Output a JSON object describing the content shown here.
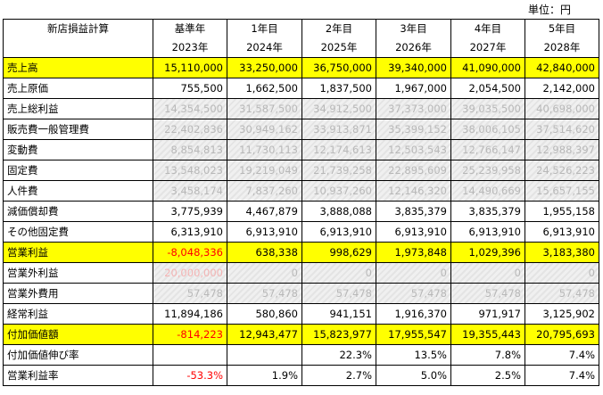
{
  "unit_label": "単位：円",
  "header": {
    "corner": "新店損益計算",
    "periods": [
      "基準年",
      "1年目",
      "2年目",
      "3年目",
      "4年目",
      "5年目"
    ],
    "years": [
      "2023年",
      "2024年",
      "2025年",
      "2026年",
      "2027年",
      "2028年"
    ]
  },
  "rows": [
    {
      "label": "売上高",
      "values": [
        "15,110,000",
        "33,250,000",
        "36,750,000",
        "39,340,000",
        "41,090,000",
        "42,840,000"
      ]
    },
    {
      "label": "売上原価",
      "values": [
        "755,500",
        "1,662,500",
        "1,837,500",
        "1,967,000",
        "2,054,500",
        "2,142,000"
      ]
    },
    {
      "label": "売上総利益",
      "values": [
        "14,354,500",
        "31,587,500",
        "34,912,500",
        "37,373,000",
        "39,035,500",
        "40,698,000"
      ]
    },
    {
      "label": "販売費一般管理費",
      "values": [
        "22,402,836",
        "30,949,162",
        "33,913,871",
        "35,399,152",
        "38,006,105",
        "37,514,620"
      ]
    },
    {
      "label": "変動費",
      "values": [
        "8,854,813",
        "11,730,113",
        "12,174,613",
        "12,503,543",
        "12,766,147",
        "12,988,397"
      ]
    },
    {
      "label": "固定費",
      "values": [
        "13,548,023",
        "19,219,049",
        "21,739,258",
        "22,895,609",
        "25,239,958",
        "24,526,223"
      ]
    },
    {
      "label": "人件費",
      "values": [
        "3,458,174",
        "7,837,260",
        "10,937,260",
        "12,146,320",
        "14,490,669",
        "15,657,155"
      ]
    },
    {
      "label": "減価償却費",
      "values": [
        "3,775,939",
        "4,467,879",
        "3,888,088",
        "3,835,379",
        "3,835,379",
        "1,955,158"
      ]
    },
    {
      "label": "その他固定費",
      "values": [
        "6,313,910",
        "6,913,910",
        "6,913,910",
        "6,913,910",
        "6,913,910",
        "6,913,910"
      ]
    },
    {
      "label": "営業利益",
      "values": [
        "-8,048,336",
        "638,338",
        "998,629",
        "1,973,848",
        "1,029,396",
        "3,183,380"
      ]
    },
    {
      "label": "営業外利益",
      "values": [
        "20,000,000",
        "0",
        "0",
        "0",
        "0",
        "0"
      ]
    },
    {
      "label": "営業外費用",
      "values": [
        "57,478",
        "57,478",
        "57,478",
        "57,478",
        "57,478",
        "57,478"
      ]
    },
    {
      "label": "経常利益",
      "values": [
        "11,894,186",
        "580,860",
        "941,151",
        "1,916,370",
        "971,917",
        "3,125,902"
      ]
    },
    {
      "label": "付加価値額",
      "values": [
        "-814,223",
        "12,943,477",
        "15,823,977",
        "17,955,547",
        "19,355,443",
        "20,795,693"
      ]
    },
    {
      "label": "付加価値伸び率",
      "values": [
        "",
        "",
        "22.3%",
        "13.5%",
        "7.8%",
        "7.4%"
      ]
    },
    {
      "label": "営業利益率",
      "values": [
        "-53.3%",
        "1.9%",
        "2.7%",
        "5.0%",
        "2.5%",
        "7.4%"
      ]
    }
  ],
  "colors": {
    "highlight": "#ffff00",
    "negative": "#ff0000",
    "blurred_text": "#b8b8b8"
  }
}
